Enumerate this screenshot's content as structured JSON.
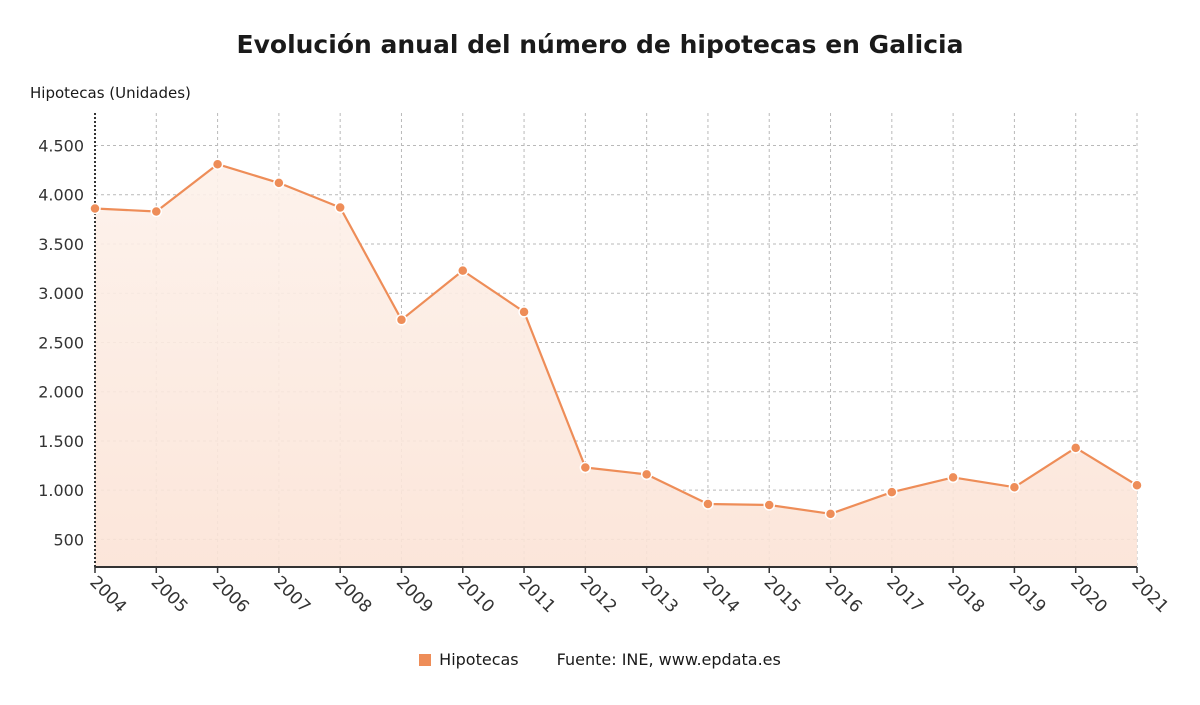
{
  "chart_data": {
    "type": "area",
    "title": "Evolución anual del número de hipotecas en Galicia",
    "ylabel": "Hipotecas (Unidades)",
    "xlabel": "",
    "categories": [
      "2004",
      "2005",
      "2006",
      "2007",
      "2008",
      "2009",
      "2010",
      "2011",
      "2012",
      "2013",
      "2014",
      "2015",
      "2016",
      "2017",
      "2018",
      "2019",
      "2020",
      "2021"
    ],
    "series": [
      {
        "name": "Hipotecas",
        "values": [
          3860,
          3830,
          4310,
          4120,
          3870,
          2730,
          3230,
          2810,
          1230,
          1160,
          860,
          850,
          760,
          980,
          1130,
          1030,
          1430,
          1050
        ]
      }
    ],
    "yticks": [
      500,
      1000,
      1500,
      2000,
      2500,
      3000,
      3500,
      4000,
      4500
    ],
    "ytick_labels": [
      "500",
      "1.000",
      "1.500",
      "2.000",
      "2.500",
      "3.000",
      "3.500",
      "4.000",
      "4.500"
    ],
    "ylim": [
      220,
      4830
    ],
    "grid": true,
    "legend_position": "bottom",
    "line_color": "#ee8d58",
    "fill_color": "#fbe3d6",
    "source": "Fuente: INE, www.epdata.es"
  }
}
